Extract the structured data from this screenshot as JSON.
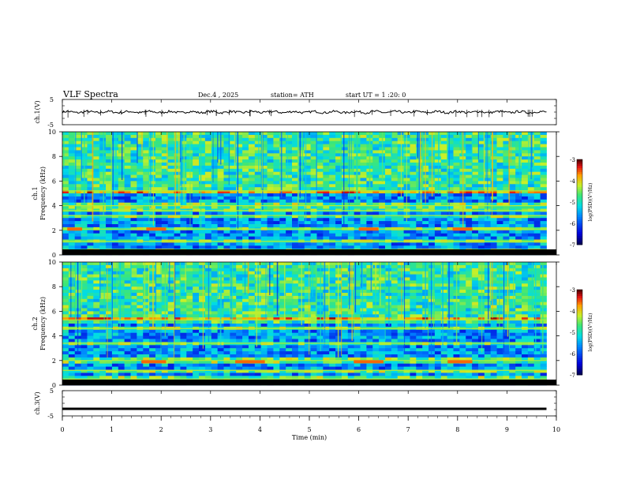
{
  "header": {
    "title": "VLF  Spectra",
    "date": "Dec.4  , 2025",
    "station": "station= ATH",
    "start": "start  UT  =   1  :20:  0"
  },
  "colors": {
    "background": "#ffffff",
    "axis": "#000000",
    "spectro_low": "#0a1ab4",
    "spectro_mid": "#32c8f0",
    "spectro_high": "#e61e1e"
  },
  "chart_data": [
    {
      "type": "line",
      "name": "ch.1 waveform",
      "ylabel": "ch.1(V)",
      "ylim": [
        -5,
        5
      ],
      "yticks": [
        "5",
        "-5"
      ],
      "xlim": [
        0,
        10
      ],
      "baseline_value": 0,
      "grid": false
    },
    {
      "type": "heatmap",
      "name": "ch.1 spectrogram",
      "ylabel": "ch.1\nFrequency (kHz)",
      "ylim": [
        0,
        10
      ],
      "yticks": [
        "0",
        "2",
        "4",
        "6",
        "8",
        "10"
      ],
      "xlim": [
        0,
        10
      ],
      "data_end_min": 9.8,
      "colorbar": {
        "label": "log(PSD)(V²/Hz)",
        "range": [
          -7,
          -3
        ],
        "ticks": [
          "-3",
          "-4",
          "-5",
          "-6",
          "-7"
        ]
      },
      "bands_khz": [
        0.3,
        1.1,
        2.1,
        3.2,
        3.6,
        4.0,
        5.2
      ],
      "bright_segments": [
        {
          "t_start": 0.1,
          "t_end": 0.4,
          "freq_khz": 2.1
        },
        {
          "t_start": 1.7,
          "t_end": 2.1,
          "freq_khz": 2.1
        },
        {
          "t_start": 6.0,
          "t_end": 6.4,
          "freq_khz": 2.1
        },
        {
          "t_start": 7.9,
          "t_end": 8.3,
          "freq_khz": 2.1
        }
      ]
    },
    {
      "type": "heatmap",
      "name": "ch.2 spectrogram",
      "ylabel": "ch.2\nFrequency (kHz)",
      "ylim": [
        0,
        10
      ],
      "yticks": [
        "0",
        "2",
        "4",
        "6",
        "8",
        "10"
      ],
      "xlim": [
        0,
        10
      ],
      "data_end_min": 9.8,
      "colorbar": {
        "label": "log(PSD)(V²/Hz)",
        "range": [
          -7,
          -3
        ],
        "ticks": [
          "-3",
          "-4",
          "-5",
          "-6",
          "-7"
        ]
      },
      "bands_khz": [
        0.5,
        1.2,
        2.0,
        3.4,
        4.6,
        5.3
      ],
      "bright_segments": [
        {
          "t_start": 1.6,
          "t_end": 2.1,
          "freq_khz": 1.9
        },
        {
          "t_start": 3.5,
          "t_end": 4.1,
          "freq_khz": 1.9
        },
        {
          "t_start": 5.9,
          "t_end": 6.5,
          "freq_khz": 1.9
        },
        {
          "t_start": 7.8,
          "t_end": 8.3,
          "freq_khz": 1.9
        }
      ]
    },
    {
      "type": "line",
      "name": "ch.3 waveform",
      "ylabel": "ch.3(V)",
      "ylim": [
        -5,
        5
      ],
      "yticks": [
        "5",
        "-5"
      ],
      "xlim": [
        0,
        10
      ],
      "baseline_value": -2.2,
      "grid": false,
      "xlabel": "Time  (min)",
      "xticks": [
        "0",
        "1",
        "2",
        "3",
        "4",
        "5",
        "6",
        "7",
        "8",
        "9",
        "10"
      ]
    }
  ]
}
